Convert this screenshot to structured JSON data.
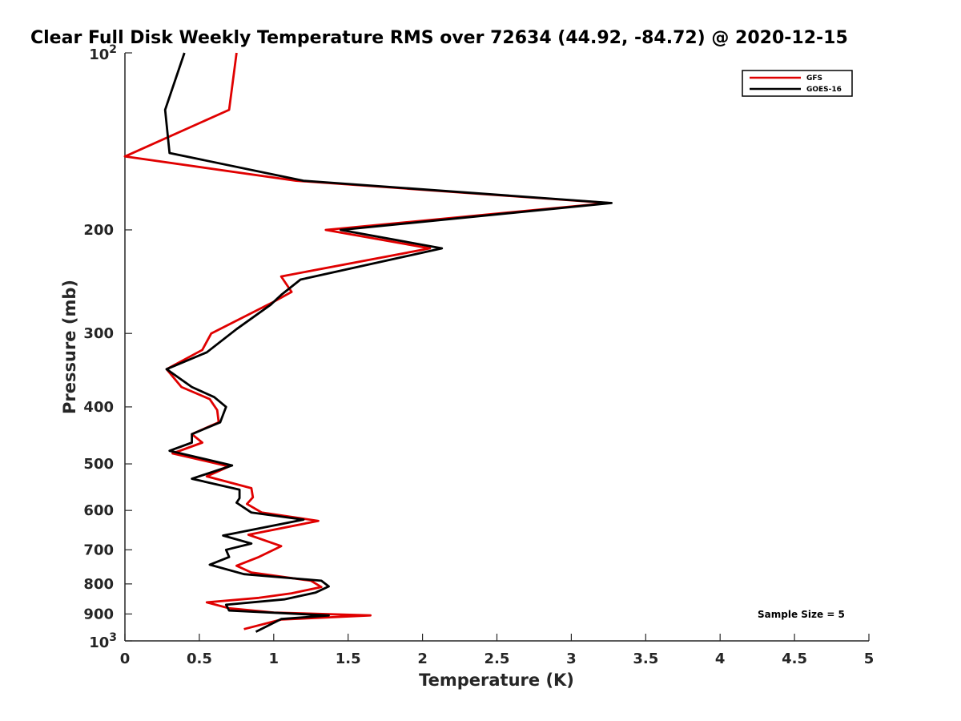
{
  "chart_data": {
    "type": "line",
    "title": "Clear Full Disk Weekly Temperature RMS over 72634 (44.92, -84.72) @ 2020-12-15",
    "xlabel": "Temperature (K)",
    "ylabel": "Pressure (mb)",
    "xlim": [
      0,
      5
    ],
    "ylim": [
      100,
      1000
    ],
    "yscale": "log",
    "yreversed": true,
    "x_ticks": [
      0,
      0.5,
      1,
      1.5,
      2,
      2.5,
      3,
      3.5,
      4,
      4.5,
      5
    ],
    "x_tick_labels": [
      "0",
      "0.5",
      "1",
      "1.5",
      "2",
      "2.5",
      "3",
      "3.5",
      "4",
      "4.5",
      "5"
    ],
    "y_ticks": [
      200,
      300,
      400,
      500,
      600,
      700,
      800,
      900
    ],
    "y_tick_labels": [
      "200",
      "300",
      "400",
      "500",
      "600",
      "700",
      "800",
      "900"
    ],
    "y_decade_ticks": [
      {
        "value": 100,
        "base": "10",
        "exp": "2"
      },
      {
        "value": 1000,
        "base": "10",
        "exp": "3"
      }
    ],
    "legend_position": "top-right",
    "grid": false,
    "annotation": "Sample Size = 5",
    "series": [
      {
        "name": "GFS",
        "color": "#e00000",
        "points": [
          {
            "t": 0.75,
            "p": 100
          },
          {
            "t": 0.7,
            "p": 125
          },
          {
            "t": 0.0,
            "p": 150
          },
          {
            "t": 1.15,
            "p": 165
          },
          {
            "t": 3.25,
            "p": 180
          },
          {
            "t": 1.35,
            "p": 200
          },
          {
            "t": 2.05,
            "p": 215
          },
          {
            "t": 1.05,
            "p": 240
          },
          {
            "t": 1.12,
            "p": 255
          },
          {
            "t": 1.0,
            "p": 265
          },
          {
            "t": 0.58,
            "p": 300
          },
          {
            "t": 0.52,
            "p": 320
          },
          {
            "t": 0.28,
            "p": 345
          },
          {
            "t": 0.38,
            "p": 370
          },
          {
            "t": 0.57,
            "p": 388
          },
          {
            "t": 0.62,
            "p": 405
          },
          {
            "t": 0.63,
            "p": 425
          },
          {
            "t": 0.45,
            "p": 445
          },
          {
            "t": 0.52,
            "p": 460
          },
          {
            "t": 0.32,
            "p": 480
          },
          {
            "t": 0.7,
            "p": 505
          },
          {
            "t": 0.55,
            "p": 525
          },
          {
            "t": 0.85,
            "p": 550
          },
          {
            "t": 0.86,
            "p": 570
          },
          {
            "t": 0.82,
            "p": 585
          },
          {
            "t": 0.92,
            "p": 605
          },
          {
            "t": 1.3,
            "p": 625
          },
          {
            "t": 0.83,
            "p": 660
          },
          {
            "t": 1.05,
            "p": 690
          },
          {
            "t": 0.9,
            "p": 720
          },
          {
            "t": 0.75,
            "p": 745
          },
          {
            "t": 0.85,
            "p": 765
          },
          {
            "t": 1.25,
            "p": 790
          },
          {
            "t": 1.32,
            "p": 810
          },
          {
            "t": 1.12,
            "p": 830
          },
          {
            "t": 0.9,
            "p": 845
          },
          {
            "t": 0.55,
            "p": 860
          },
          {
            "t": 0.7,
            "p": 880
          },
          {
            "t": 1.0,
            "p": 895
          },
          {
            "t": 1.65,
            "p": 905
          },
          {
            "t": 1.05,
            "p": 920
          },
          {
            "t": 0.8,
            "p": 955
          }
        ]
      },
      {
        "name": "GOES-16",
        "color": "#000000",
        "points": [
          {
            "t": 0.4,
            "p": 100
          },
          {
            "t": 0.27,
            "p": 125
          },
          {
            "t": 0.3,
            "p": 148
          },
          {
            "t": 1.2,
            "p": 165
          },
          {
            "t": 3.27,
            "p": 180
          },
          {
            "t": 1.45,
            "p": 200
          },
          {
            "t": 2.13,
            "p": 215
          },
          {
            "t": 1.18,
            "p": 243
          },
          {
            "t": 1.05,
            "p": 258
          },
          {
            "t": 0.98,
            "p": 268
          },
          {
            "t": 0.75,
            "p": 295
          },
          {
            "t": 0.55,
            "p": 323
          },
          {
            "t": 0.28,
            "p": 345
          },
          {
            "t": 0.45,
            "p": 370
          },
          {
            "t": 0.6,
            "p": 385
          },
          {
            "t": 0.68,
            "p": 400
          },
          {
            "t": 0.64,
            "p": 425
          },
          {
            "t": 0.45,
            "p": 445
          },
          {
            "t": 0.45,
            "p": 460
          },
          {
            "t": 0.3,
            "p": 475
          },
          {
            "t": 0.72,
            "p": 503
          },
          {
            "t": 0.45,
            "p": 530
          },
          {
            "t": 0.77,
            "p": 553
          },
          {
            "t": 0.77,
            "p": 572
          },
          {
            "t": 0.75,
            "p": 582
          },
          {
            "t": 0.85,
            "p": 605
          },
          {
            "t": 1.2,
            "p": 622
          },
          {
            "t": 0.66,
            "p": 662
          },
          {
            "t": 0.85,
            "p": 683
          },
          {
            "t": 0.68,
            "p": 700
          },
          {
            "t": 0.7,
            "p": 720
          },
          {
            "t": 0.57,
            "p": 742
          },
          {
            "t": 0.8,
            "p": 770
          },
          {
            "t": 1.32,
            "p": 790
          },
          {
            "t": 1.37,
            "p": 808
          },
          {
            "t": 1.28,
            "p": 828
          },
          {
            "t": 1.07,
            "p": 850
          },
          {
            "t": 0.68,
            "p": 868
          },
          {
            "t": 0.7,
            "p": 888
          },
          {
            "t": 1.37,
            "p": 905
          },
          {
            "t": 1.05,
            "p": 918
          },
          {
            "t": 0.88,
            "p": 965
          }
        ]
      }
    ]
  }
}
